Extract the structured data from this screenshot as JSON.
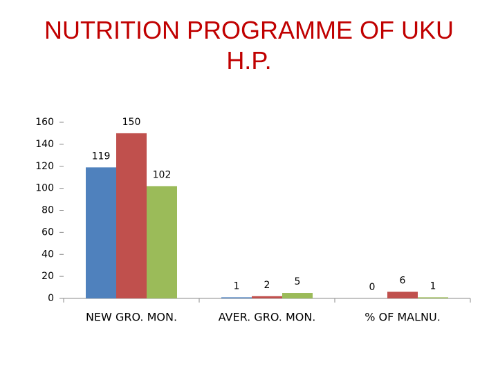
{
  "chart_data": {
    "type": "bar",
    "title": "NUTRITION PROGRAMME OF UKU H.P.",
    "categories": [
      "NEW GRO. MON.",
      "AVER. GRO. MON.",
      "% OF MALNU."
    ],
    "series": [
      {
        "color": "#4f81bd",
        "values": [
          119,
          1,
          0
        ]
      },
      {
        "color": "#c0504d",
        "values": [
          150,
          2,
          6
        ]
      },
      {
        "color": "#9bbb59",
        "values": [
          102,
          5,
          1
        ]
      }
    ],
    "ylim": [
      0,
      160
    ],
    "yticks": [
      0,
      20,
      40,
      60,
      80,
      100,
      120,
      140,
      160
    ],
    "grid": false
  }
}
